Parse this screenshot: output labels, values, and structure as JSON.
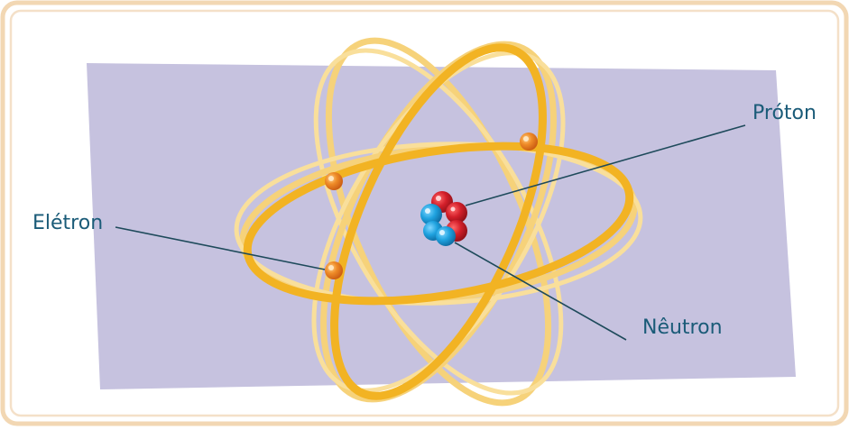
{
  "labels": {
    "proton": "Próton",
    "electron": "Elétron",
    "neutron": "Nêutron"
  },
  "colors": {
    "frame_outer": "#f2d7b3",
    "frame_inner": "#ffffff",
    "frame_line": "#f3dcc0",
    "plane": "#c5c1df",
    "orbit_strong": "#f2b323",
    "orbit_light": "#f6cf63",
    "electron": "#ef8c28",
    "electron_shadow": "#d6661a",
    "proton": "#d31f2a",
    "proton_light": "#f03a3a",
    "neutron": "#1fa2df",
    "neutron_light": "#49bdf0",
    "label_text": "#1a5b78",
    "leader_line": "#1e4a5b"
  }
}
